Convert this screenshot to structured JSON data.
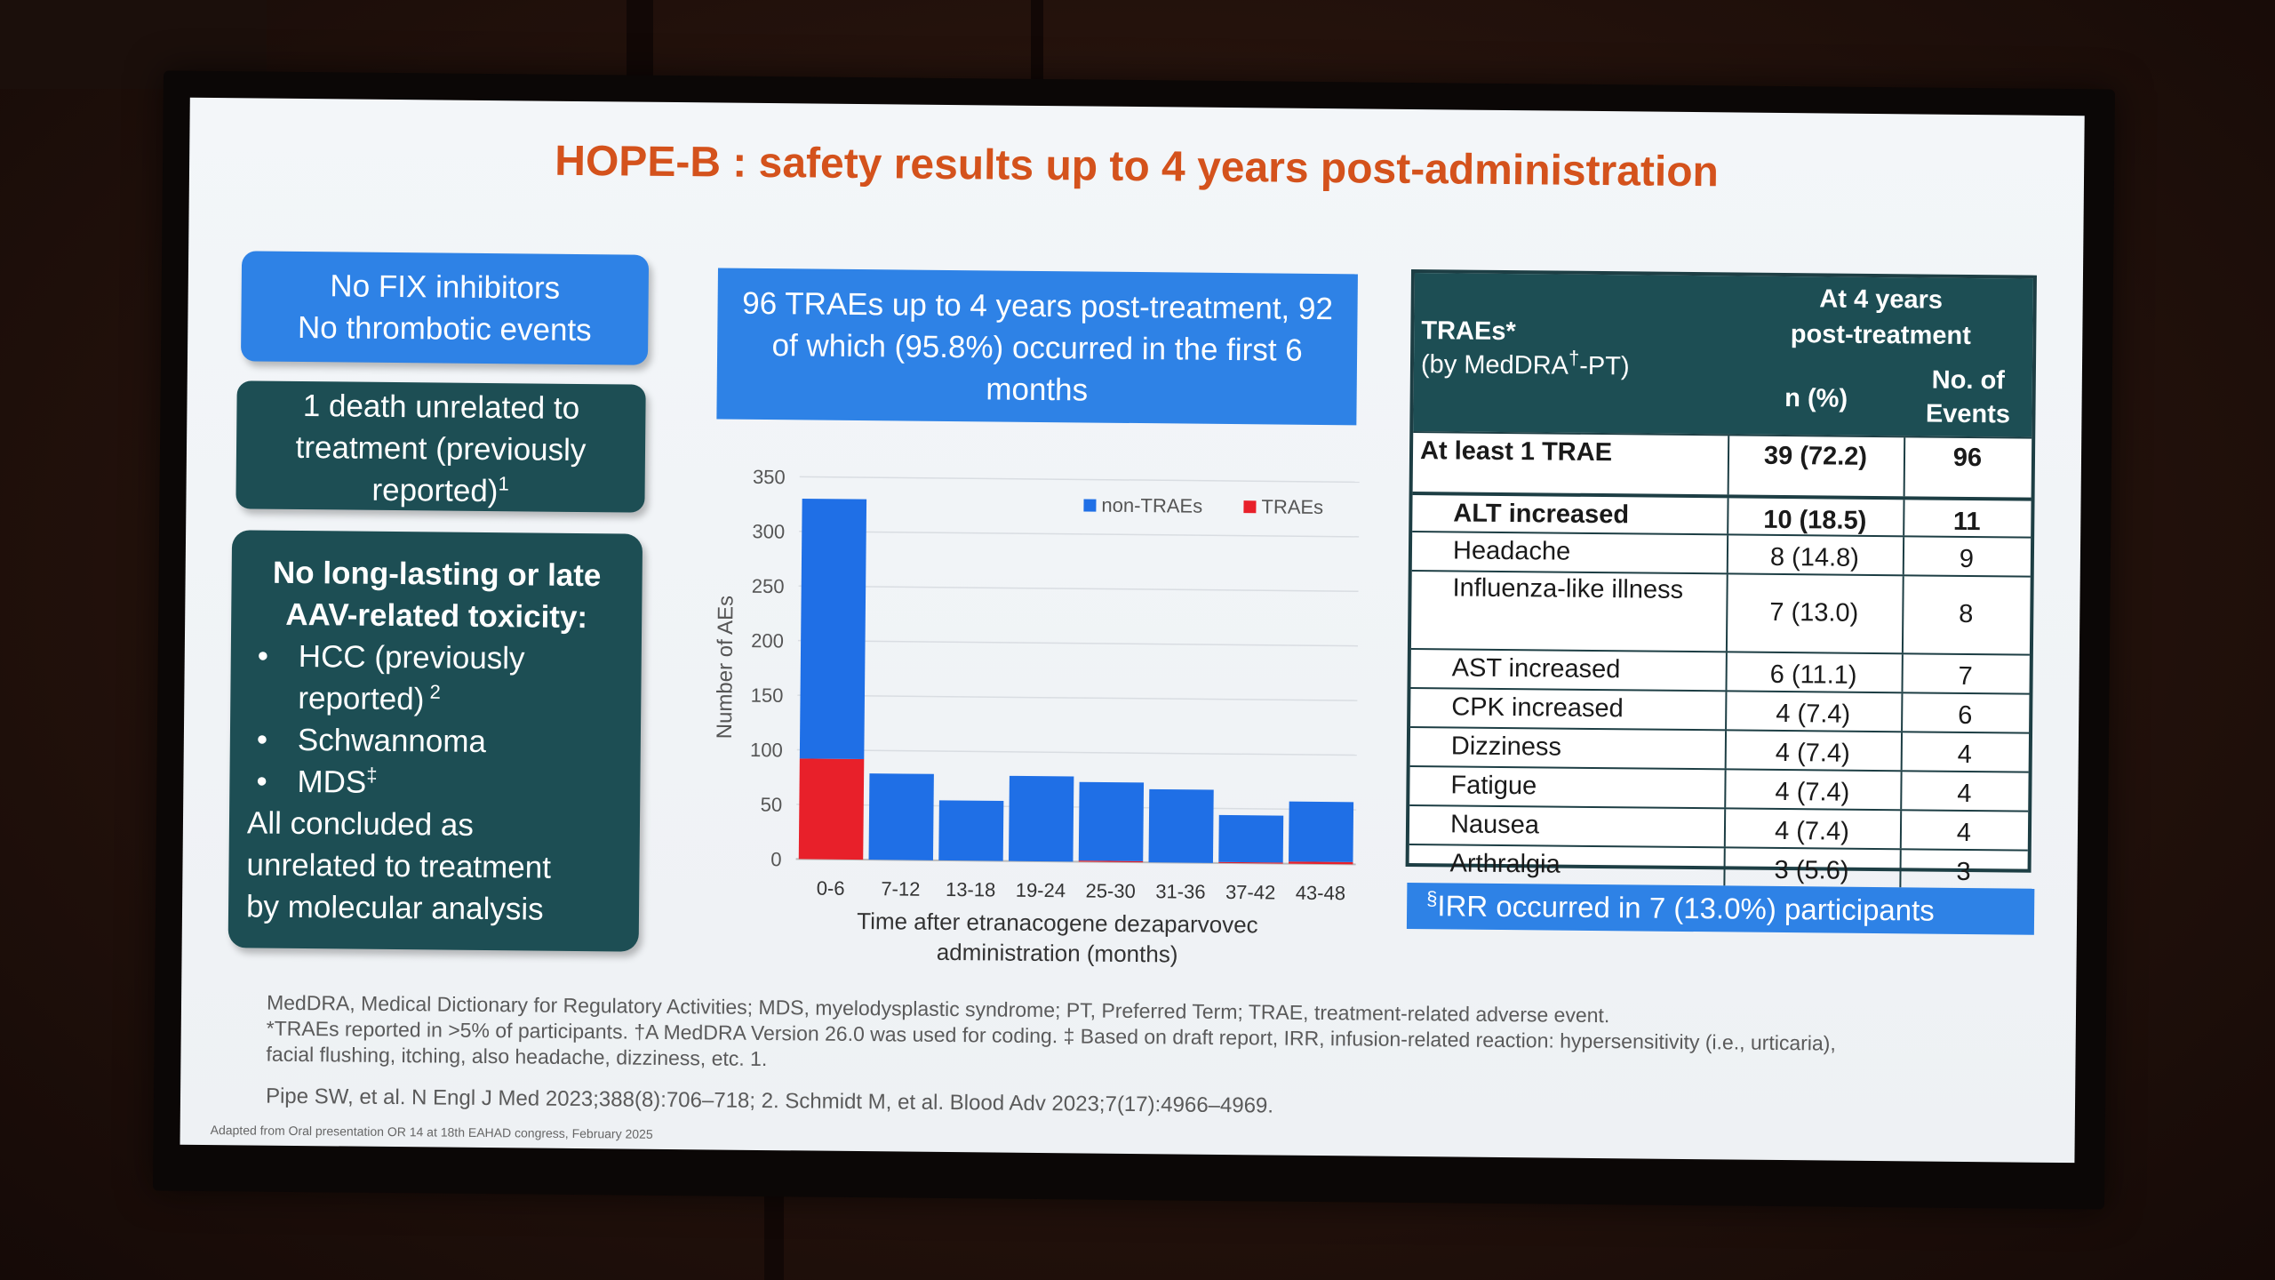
{
  "slide": {
    "title": "HOPE-B  : safety results up to 4 years post-administration",
    "box_no_fix": {
      "line1": "No FIX inhibitors",
      "line2": "No thrombotic events"
    },
    "box_death": {
      "line1": "1 death unrelated to",
      "line2": "treatment (previously",
      "line3": "reported)",
      "sup": "1"
    },
    "box_toxicity": {
      "heading1": "No long-lasting or late",
      "heading2": "AAV-related toxicity:",
      "items": [
        {
          "text": "HCC (previously",
          "text2": "reported)",
          "sup": " 2"
        },
        {
          "text": "Schwannoma"
        },
        {
          "text": "MDS",
          "sup": "‡"
        }
      ],
      "closing1": "All concluded as",
      "closing2": "unrelated to treatment",
      "closing3": "by molecular analysis"
    },
    "callout": {
      "line1": "96 TRAEs up to 4 years post-treatment, 92",
      "line2": "of which (95.8%) occurred in the first 6",
      "line3": "months"
    },
    "table": {
      "head_col1_line1": "TRAEs*",
      "head_col1_line2a": "(by MedDRA",
      "head_col1_sup": "†",
      "head_col1_line2b": "-PT)",
      "head_group_line1": "At 4 years",
      "head_group_line2": "post-treatment",
      "head_n": "n (%)",
      "head_events_line1": "No. of",
      "head_events_line2": "Events",
      "rows": [
        {
          "label": "At least 1 TRAE",
          "n": "39 (72.2)",
          "events": "96"
        },
        {
          "label": "ALT increased",
          "n": "10 (18.5)",
          "events": "11"
        },
        {
          "label": "Headache",
          "n": "8 (14.8)",
          "events": "9"
        },
        {
          "label": "Influenza-like illness",
          "n": "7 (13.0)",
          "events": "8"
        },
        {
          "label": "AST increased",
          "n": "6 (11.1)",
          "events": "7"
        },
        {
          "label": "CPK increased",
          "n": "4 (7.4)",
          "events": "6"
        },
        {
          "label": "Dizziness",
          "n": "4 (7.4)",
          "events": "4"
        },
        {
          "label": "Fatigue",
          "n": "4 (7.4)",
          "events": "4"
        },
        {
          "label": "Nausea",
          "n": "4 (7.4)",
          "events": "4"
        },
        {
          "label": "Arthralgia",
          "n": "3 (5.6)",
          "events": "3"
        }
      ]
    },
    "irr_note": {
      "sup": "§",
      "text": "IRR occurred in 7 (13.0%) participants"
    },
    "footnotes": {
      "line1": "MedDRA, Medical Dictionary for Regulatory Activities; MDS, myelodysplastic syndrome; PT, Preferred Term; TRAE, treatment-related adverse event.",
      "line2": "*TRAEs reported in >5% of participants. †A MedDRA Version 26.0 was used for coding. ‡ Based on draft report, IRR, infusion-related reaction: hypersensitivity (i.e., urticaria),",
      "line3": "facial flushing, itching, also headache, dizziness, etc. 1.",
      "refs": "Pipe SW, et al. N Engl J Med 2023;388(8):706–718; 2. Schmidt M, et al. Blood Adv 2023;7(17):4966–4969.",
      "adapted": "Adapted from Oral presentation OR 14 at 18th EAHAD congress, February 2025"
    },
    "colors": {
      "title": "#d4521c",
      "blue": "#2e82e6",
      "teal": "#1d4e54",
      "red": "#e8202a"
    }
  },
  "chart_data": {
    "type": "bar",
    "stacked": true,
    "categories": [
      "0-6",
      "7-12",
      "13-18",
      "19-24",
      "25-30",
      "31-36",
      "37-42",
      "43-48"
    ],
    "series": [
      {
        "name": "TRAEs",
        "color": "#e8202a",
        "values": [
          92,
          0,
          0,
          0,
          1,
          0,
          1,
          2
        ]
      },
      {
        "name": "non-TRAEs",
        "color": "#1f6fe6",
        "values": [
          238,
          79,
          55,
          78,
          72,
          67,
          43,
          55
        ]
      }
    ],
    "xlabel": "Time after etranacogene dezaparvovec administration (months)",
    "xlabel_line1": "Time after etranacogene dezaparvovec",
    "xlabel_line2": "administration (months)",
    "ylabel": "Number of AEs",
    "ylim": [
      0,
      350
    ],
    "yticks": [
      0,
      50,
      100,
      150,
      200,
      250,
      300,
      350
    ],
    "grid": true,
    "legend_placement": "top-right",
    "legend_order": [
      "non-TRAEs",
      "TRAEs"
    ]
  }
}
